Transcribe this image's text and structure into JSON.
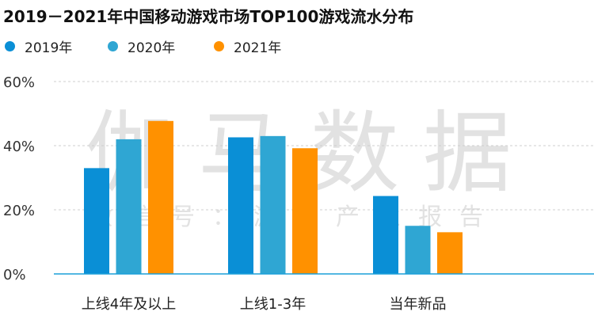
{
  "chart_data": {
    "type": "bar",
    "title": "2019－2021年中国移动游戏市场TOP100游戏流水分布",
    "categories": [
      "上线4年及以上",
      "上线1-3年",
      "当年新品"
    ],
    "series": [
      {
        "name": "2019年",
        "values": [
          33,
          42.6,
          24.3
        ],
        "color": "#0a8fd6"
      },
      {
        "name": "2020年",
        "values": [
          42,
          43,
          15
        ],
        "color": "#2fa6d3"
      },
      {
        "name": "2021年",
        "values": [
          47.7,
          39.2,
          13
        ],
        "color": "#ff9100"
      }
    ],
    "yticks": [
      "0%",
      "20%",
      "40%",
      "60%"
    ],
    "ylim": [
      0,
      60
    ],
    "grid": true,
    "legend": "top-left",
    "unit": "%"
  },
  "watermark": {
    "main": "伽马数据",
    "sub": "微信号：游戏产业报告"
  }
}
